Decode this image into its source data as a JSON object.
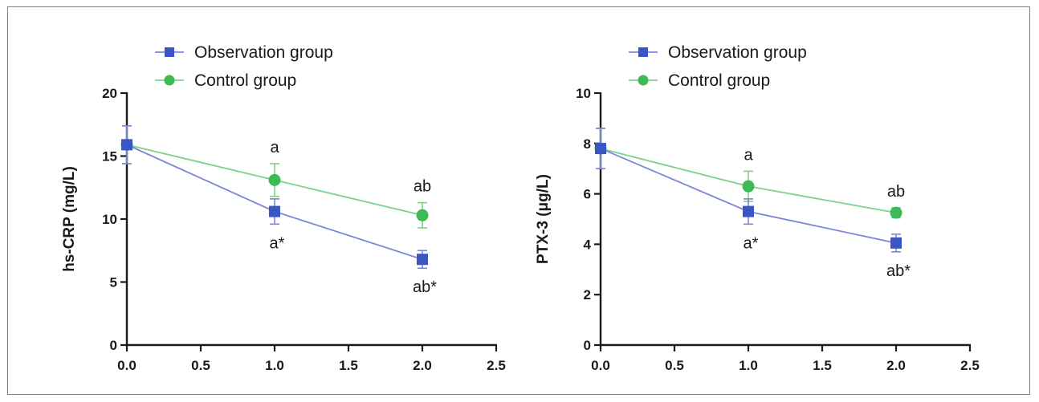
{
  "chart_data": [
    {
      "type": "line",
      "ylabel": "hs-CRP (mg/L)",
      "xlabel": "",
      "xlim": [
        0,
        2.5
      ],
      "ylim": [
        0,
        20
      ],
      "x_ticks": [
        "0.0",
        "0.5",
        "1.0",
        "1.5",
        "2.0",
        "2.5"
      ],
      "y_ticks": [
        "0",
        "5",
        "10",
        "15",
        "20"
      ],
      "legend_position": "top-left",
      "series": [
        {
          "name": "Observation group",
          "color": "#3a55c4",
          "line_color": "#7b86d6",
          "marker": "square",
          "x": [
            0,
            1,
            2
          ],
          "y": [
            15.9,
            10.6,
            6.8
          ],
          "error": [
            1.5,
            1.0,
            0.7
          ]
        },
        {
          "name": "Control group",
          "color": "#3cba54",
          "line_color": "#7fd08c",
          "marker": "circle",
          "x": [
            0,
            1,
            2
          ],
          "y": [
            15.9,
            13.1,
            10.3
          ],
          "error": [
            1.5,
            1.3,
            1.0
          ]
        }
      ],
      "annotations": [
        {
          "text": "a",
          "x": 1,
          "series": "Control group",
          "position": "above"
        },
        {
          "text": "a*",
          "x": 1,
          "series": "Observation group",
          "position": "below"
        },
        {
          "text": "ab",
          "x": 2,
          "series": "Control group",
          "position": "above"
        },
        {
          "text": "ab*",
          "x": 2,
          "series": "Observation group",
          "position": "below"
        }
      ]
    },
    {
      "type": "line",
      "ylabel": "PTX-3 (μg/L)",
      "xlabel": "",
      "xlim": [
        0,
        2.5
      ],
      "ylim": [
        0,
        10
      ],
      "x_ticks": [
        "0.0",
        "0.5",
        "1.0",
        "1.5",
        "2.0",
        "2.5"
      ],
      "y_ticks": [
        "0",
        "2",
        "4",
        "6",
        "8",
        "10"
      ],
      "legend_position": "top-left",
      "series": [
        {
          "name": "Observation group",
          "color": "#3a55c4",
          "line_color": "#7b86d6",
          "marker": "square",
          "x": [
            0,
            1,
            2
          ],
          "y": [
            7.8,
            5.3,
            4.05
          ],
          "error": [
            0.8,
            0.5,
            0.35
          ]
        },
        {
          "name": "Control group",
          "color": "#3cba54",
          "line_color": "#7fd08c",
          "marker": "circle",
          "x": [
            0,
            1,
            2
          ],
          "y": [
            7.8,
            6.3,
            5.25
          ],
          "error": [
            0.8,
            0.6,
            0.2
          ]
        }
      ],
      "annotations": [
        {
          "text": "a",
          "x": 1,
          "series": "Control group",
          "position": "above"
        },
        {
          "text": "a*",
          "x": 1,
          "series": "Observation group",
          "position": "below"
        },
        {
          "text": "ab",
          "x": 2,
          "series": "Control group",
          "position": "above"
        },
        {
          "text": "ab*",
          "x": 2,
          "series": "Observation group",
          "position": "below"
        }
      ]
    }
  ]
}
